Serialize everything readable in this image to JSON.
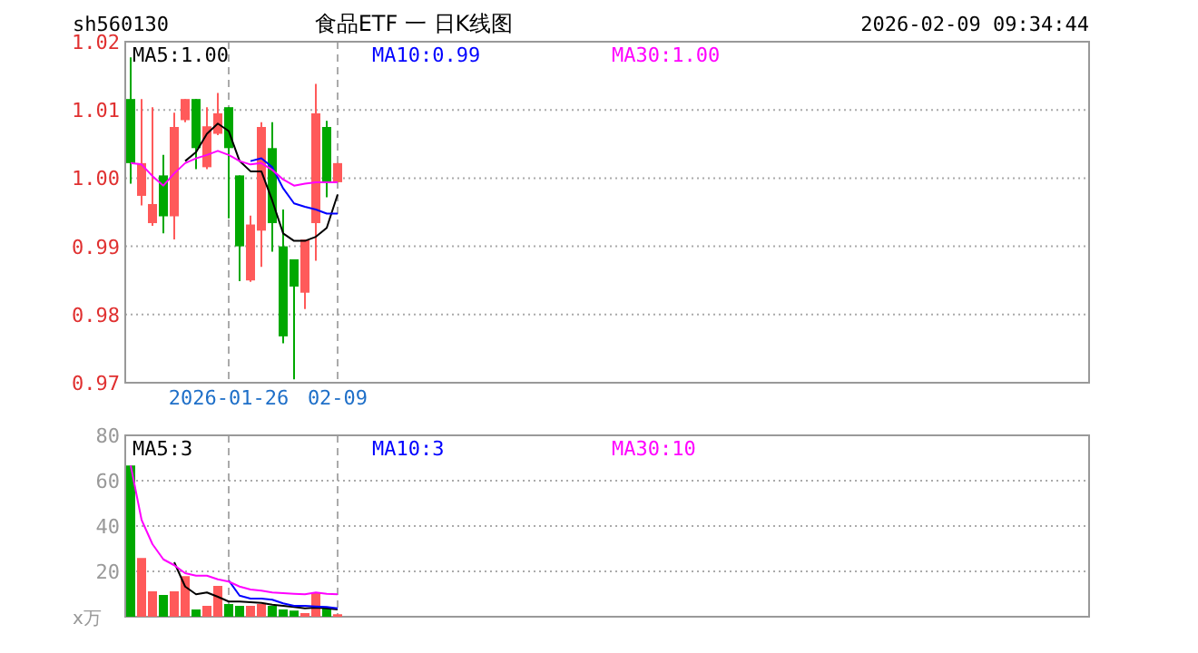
{
  "chart_data": [
    {
      "type": "candlestick",
      "title": "食品ETF 一 日K线图",
      "annotations": [
        "sh560130",
        "2026-02-09 09:34:44"
      ],
      "categories": [
        null,
        null,
        null,
        null,
        null,
        null,
        null,
        null,
        null,
        "2026-01-26",
        null,
        null,
        null,
        null,
        null,
        null,
        null,
        null,
        null,
        "02-09"
      ],
      "ohlc": [
        [
          1.0116,
          1.0177,
          0.9992,
          1.0022
        ],
        [
          0.9974,
          1.0116,
          0.996,
          1.0022
        ],
        [
          0.9934,
          1.0104,
          0.993,
          0.9962
        ],
        [
          1.0004,
          1.0034,
          0.9919,
          0.9944
        ],
        [
          0.9944,
          1.0096,
          0.991,
          1.0075
        ],
        [
          1.0085,
          1.0116,
          1.0082,
          1.0116
        ],
        [
          1.0116,
          1.0116,
          1.0013,
          1.0044
        ],
        [
          1.0016,
          1.0104,
          1.0013,
          1.0076
        ],
        [
          1.0065,
          1.0125,
          1.0063,
          1.0095
        ],
        [
          1.0104,
          1.0104,
          0.9941,
          1.0044
        ],
        [
          1.0004,
          1.0004,
          0.9849,
          0.99
        ],
        [
          0.985,
          0.9945,
          0.9848,
          0.9932
        ],
        [
          0.9923,
          1.0082,
          0.987,
          1.0075
        ],
        [
          1.0044,
          1.0082,
          0.9892,
          0.9934
        ],
        [
          0.99,
          0.9954,
          0.9758,
          0.9768
        ],
        [
          0.9881,
          0.9881,
          0.9705,
          0.9841
        ],
        [
          0.9832,
          0.991,
          0.9808,
          0.991
        ],
        [
          0.9934,
          1.0138,
          0.9879,
          1.0095
        ],
        [
          1.0075,
          1.0084,
          0.9972,
          0.9994
        ],
        [
          0.9994,
          1.0022,
          0.9994,
          1.0022
        ]
      ],
      "colors": [
        "#00a800",
        "#ff5a5a",
        "#ff5a5a",
        "#00a800",
        "#ff5a5a",
        "#ff5a5a",
        "#00a800",
        "#ff5a5a",
        "#ff5a5a",
        "#00a800",
        "#00a800",
        "#ff5a5a",
        "#ff5a5a",
        "#00a800",
        "#00a800",
        "#00a800",
        "#ff5a5a",
        "#ff5a5a",
        "#00a800",
        "#ff5a5a"
      ],
      "series": [
        {
          "type": "line",
          "name": "MA5:1.00",
          "color": "#000000",
          "values": [
            null,
            null,
            null,
            null,
            null,
            1.0025,
            1.0038,
            1.0065,
            1.008,
            1.0069,
            1.0025,
            1.001,
            1.001,
            0.9967,
            0.9919,
            0.9908,
            0.9908,
            0.9914,
            0.9927,
            0.9976
          ]
        },
        {
          "type": "line",
          "name": "MA10:0.99",
          "color": "#0000ff",
          "values": [
            null,
            null,
            null,
            null,
            null,
            null,
            null,
            null,
            null,
            null,
            null,
            1.0025,
            1.0029,
            1.0016,
            0.9985,
            0.9963,
            0.9958,
            0.9954,
            0.9948,
            0.9948
          ]
        },
        {
          "type": "line",
          "name": "MA30:1.00",
          "color": "#ff00ff",
          "values": [
            1.0022,
            1.002,
            1.0003,
            0.9989,
            1.0007,
            1.0022,
            1.0029,
            1.0034,
            1.004,
            1.0034,
            1.0025,
            1.002,
            1.0022,
            1.0012,
            0.9998,
            0.9989,
            0.9992,
            0.9994,
            0.9994,
            0.9994
          ]
        }
      ],
      "ylim": [
        0.97,
        1.02
      ],
      "yticks": [
        0.97,
        0.98,
        0.99,
        {
          "value": 1,
          "label": "1.00"
        },
        1.01,
        1.02
      ],
      "grid": true,
      "legend": "top"
    },
    {
      "type": "bar",
      "ylabel": "x万",
      "categories": [
        null,
        null,
        null,
        null,
        null,
        null,
        null,
        null,
        null,
        null,
        null,
        null,
        null,
        null,
        null,
        null,
        null,
        null,
        null,
        null
      ],
      "series": [
        {
          "type": "bar",
          "colors": [
            "#00a800",
            "#ff5a5a",
            "#ff5a5a",
            "#00a800",
            "#ff5a5a",
            "#ff5a5a",
            "#00a800",
            "#ff5a5a",
            "#ff5a5a",
            "#00a800",
            "#00a800",
            "#ff5a5a",
            "#ff5a5a",
            "#00a800",
            "#00a800",
            "#00a800",
            "#ff5a5a",
            "#ff5a5a",
            "#00a800",
            "#ff5a5a"
          ],
          "values": [
            66.7,
            25.9,
            11.2,
            9.6,
            11.2,
            17.9,
            3.2,
            4.8,
            13.6,
            5.6,
            4.8,
            4.8,
            5.6,
            4.8,
            3.2,
            2.7,
            1.6,
            10.7,
            3.7,
            1.1
          ]
        },
        {
          "type": "line",
          "name": "MA5:3",
          "color": "#000000",
          "values": [
            null,
            null,
            null,
            null,
            24,
            13.3,
            9.9,
            10.7,
            8.8,
            6.7,
            6.7,
            6.4,
            6.1,
            5.3,
            4.8,
            4.3,
            3.7,
            4,
            3.7,
            3.2
          ]
        },
        {
          "type": "line",
          "name": "MA10:3",
          "color": "#0000ff",
          "values": [
            null,
            null,
            null,
            null,
            null,
            null,
            null,
            null,
            null,
            16,
            9.3,
            8,
            8,
            7.5,
            5.9,
            4.8,
            4.8,
            4.5,
            4.3,
            3.7
          ]
        },
        {
          "type": "line",
          "name": "MA30:10",
          "color": "#ff00ff",
          "values": [
            66.7,
            42.7,
            32,
            25.3,
            22.7,
            19.2,
            18.1,
            18.1,
            16.5,
            15.5,
            13.3,
            12,
            11.5,
            10.7,
            10.4,
            10.1,
            9.9,
            10.7,
            10.1,
            9.9
          ]
        }
      ],
      "ylim": [
        0,
        80
      ],
      "yticks": [
        20,
        40,
        60,
        80
      ],
      "grid": true,
      "legend": "top"
    }
  ]
}
